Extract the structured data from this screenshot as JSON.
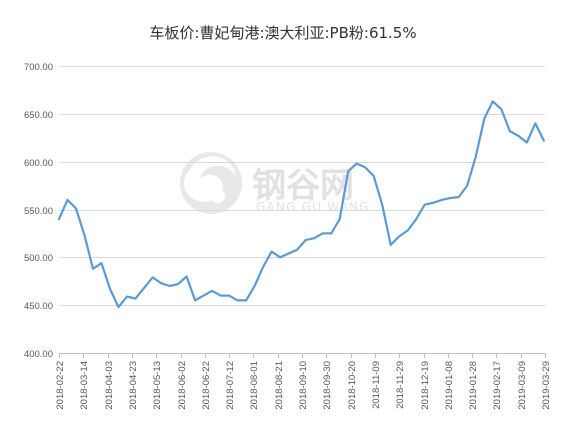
{
  "colors": {
    "series": "#5b9bd5",
    "watermark": "#c9c9cf"
  },
  "watermark": {
    "cn": "钢谷网",
    "en": "GANG GU WANG",
    "icon": "swirl-logo"
  },
  "chart_data": {
    "type": "line",
    "title": "车板价:曹妃甸港:澳大利亚:PB粉:61.5%",
    "xlabel": "",
    "ylabel": "",
    "ylim": [
      400,
      700
    ],
    "yticks": [
      "400.00",
      "450.00",
      "500.00",
      "550.00",
      "600.00",
      "650.00",
      "700.00"
    ],
    "xticks": [
      "2018-02-22",
      "2018-03-14",
      "2018-04-03",
      "2018-04-23",
      "2018-05-13",
      "2018-06-02",
      "2018-06-22",
      "2018-07-12",
      "2018-08-01",
      "2018-08-21",
      "2018-09-10",
      "2018-09-30",
      "2018-10-20",
      "2018-11-09",
      "2018-11-29",
      "2018-12-19",
      "2019-01-08",
      "2019-01-28",
      "2019-02-17",
      "2019-03-09",
      "2019-03-29"
    ],
    "grid": true,
    "legend": "none",
    "x": [
      "2018-02-22",
      "2018-03-01",
      "2018-03-08",
      "2018-03-15",
      "2018-03-22",
      "2018-03-29",
      "2018-04-05",
      "2018-04-12",
      "2018-04-19",
      "2018-04-26",
      "2018-05-03",
      "2018-05-10",
      "2018-05-17",
      "2018-05-24",
      "2018-05-31",
      "2018-06-07",
      "2018-06-14",
      "2018-06-21",
      "2018-06-28",
      "2018-07-05",
      "2018-07-12",
      "2018-07-19",
      "2018-07-26",
      "2018-08-02",
      "2018-08-09",
      "2018-08-16",
      "2018-08-23",
      "2018-08-30",
      "2018-09-06",
      "2018-09-13",
      "2018-09-20",
      "2018-09-27",
      "2018-10-04",
      "2018-10-11",
      "2018-10-18",
      "2018-10-25",
      "2018-11-01",
      "2018-11-08",
      "2018-11-15",
      "2018-11-22",
      "2018-11-29",
      "2018-12-06",
      "2018-12-13",
      "2018-12-20",
      "2018-12-27",
      "2019-01-03",
      "2019-01-10",
      "2019-01-17",
      "2019-01-24",
      "2019-01-31",
      "2019-02-07",
      "2019-02-14",
      "2019-02-21",
      "2019-02-28",
      "2019-03-07",
      "2019-03-14",
      "2019-03-21",
      "2019-03-28"
    ],
    "values": [
      540,
      560,
      551,
      523,
      488,
      494,
      467,
      448,
      459,
      457,
      468,
      479,
      473,
      470,
      472,
      480,
      455,
      460,
      465,
      460,
      460,
      455,
      455,
      470,
      490,
      506,
      500,
      504,
      508,
      518,
      520,
      525,
      525,
      540,
      590,
      598,
      594,
      585,
      555,
      513,
      522,
      528,
      540,
      555,
      557,
      560,
      562,
      563,
      575,
      605,
      645,
      663,
      655,
      632,
      627,
      620,
      640,
      622
    ]
  }
}
